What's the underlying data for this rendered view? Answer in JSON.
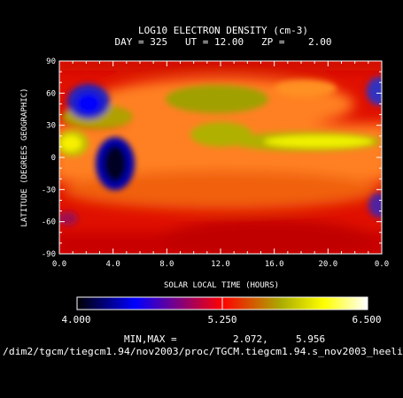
{
  "chart_data": {
    "type": "heatmap",
    "title": "LOG10 ELECTRON DENSITY (cm-3)",
    "subtitle": "DAY = 325   UT = 12.00   ZP =    2.00",
    "xlabel": "SOLAR LOCAL TIME (HOURS)",
    "ylabel": "LATITUDE (DEGREES GEOGRAPHIC)",
    "xlim": [
      0,
      24
    ],
    "ylim": [
      -90,
      90
    ],
    "x_tick_labels": [
      "0.0",
      "4.0",
      "8.0",
      "12.0",
      "16.0",
      "20.0",
      "0.0"
    ],
    "y_tick_labels": [
      "90",
      "60",
      "30",
      "0",
      "-30",
      "-60",
      "-90"
    ],
    "colorbar": {
      "min": 4.0,
      "max": 6.5,
      "tick_labels": [
        "4.000",
        "5.250",
        "6.500"
      ],
      "colors": [
        "#000000",
        "#0000ff",
        "#ff0000",
        "#aaaa00",
        "#ffff00",
        "#ffffff"
      ]
    },
    "minmax_label": "MIN,MAX =",
    "min_value": "2.072,",
    "max_value": "5.956",
    "features": [
      {
        "lt": 4.5,
        "lat": 0,
        "value": 2.1
      },
      {
        "lt": 2.2,
        "lat": 50,
        "value": 4.3
      },
      {
        "lt": 13.5,
        "lat": 15,
        "value": 5.6
      },
      {
        "lt": 18.5,
        "lat": 8,
        "value": 5.9
      },
      {
        "lt": 14,
        "lat": 55,
        "value": 5.5
      },
      {
        "lt": 1.0,
        "lat": 12,
        "value": 5.7
      },
      {
        "lt": 23.5,
        "lat": 55,
        "value": 4.6
      },
      {
        "lt": 23.5,
        "lat": -45,
        "value": 4.8
      }
    ]
  },
  "footer": {
    "path": "/dim2/tgcm/tiegcm1.94/nov2003/proc/TGCM.tiegcm1.94.s_nov2003_heeli"
  }
}
